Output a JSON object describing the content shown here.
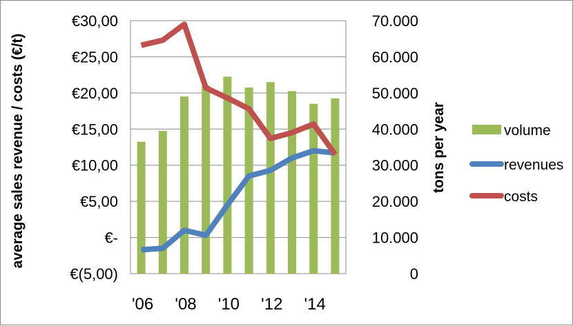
{
  "chart_data": {
    "type": "bar+line",
    "categories": [
      "2006",
      "2007",
      "2008",
      "2009",
      "2010",
      "2011",
      "2012",
      "2013",
      "2014",
      "2015"
    ],
    "x_tick_labels": [
      "'06",
      "'08",
      "'10",
      "'12",
      "'14"
    ],
    "y_left": {
      "label": "average sales revenue / costs (€/t)",
      "min": -5,
      "max": 30,
      "step": 5,
      "tick_labels": [
        "€(5,00)",
        "€-",
        "€5,00",
        "€10,00",
        "€15,00",
        "€20,00",
        "€25,00",
        "€30,00"
      ]
    },
    "y_right": {
      "label": "tons per year",
      "min": 0,
      "max": 70000,
      "step": 10000,
      "tick_labels": [
        "0",
        "10.000",
        "20.000",
        "30.000",
        "40.000",
        "50.000",
        "60.000",
        "70.000"
      ]
    },
    "series": [
      {
        "name": "volume",
        "kind": "bar",
        "axis": "right",
        "color": "#9BBB59",
        "values": [
          36500,
          39500,
          49000,
          52000,
          54500,
          51500,
          53000,
          50500,
          47000,
          48500
        ]
      },
      {
        "name": "revenues",
        "kind": "line",
        "axis": "left",
        "color": "#4F81BD",
        "values": [
          -1.7,
          -1.5,
          1.0,
          0.3,
          4.5,
          8.5,
          9.3,
          11.0,
          12.0,
          11.7
        ]
      },
      {
        "name": "costs",
        "kind": "line",
        "axis": "left",
        "color": "#C0504D",
        "values": [
          26.6,
          27.3,
          29.5,
          20.7,
          19.3,
          17.8,
          13.7,
          14.5,
          15.7,
          11.5
        ]
      }
    ],
    "legend_position": "right",
    "grid": true
  }
}
